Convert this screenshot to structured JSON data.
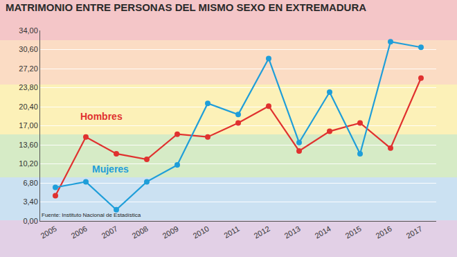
{
  "chart_data": {
    "type": "line",
    "title": "MATRIMONIO ENTRE PERSONAS DEL MISMO SEXO EN EXTREMADURA",
    "source": "Fuente: Instituto Nacional de Estadística",
    "categories": [
      "2005",
      "2006",
      "2007",
      "2008",
      "2009",
      "2010",
      "2011",
      "2012",
      "2013",
      "2014",
      "2015",
      "2016",
      "2017"
    ],
    "series": [
      {
        "name": "Hombres",
        "color": "#e0312f",
        "marker": "circle",
        "values": [
          4.5,
          15,
          12,
          11,
          15.5,
          15,
          17.5,
          20.5,
          12.5,
          16,
          17.5,
          13,
          25.5
        ]
      },
      {
        "name": "Mujeres",
        "color": "#1f9ed9",
        "marker": "circle",
        "values": [
          6,
          7,
          2,
          7,
          10,
          21,
          19,
          29,
          14,
          23,
          12,
          32,
          31
        ]
      }
    ],
    "ylim": [
      0,
      34
    ],
    "yticks": [
      {
        "value": 0,
        "label": "0,00"
      },
      {
        "value": 3.4,
        "label": "3,40"
      },
      {
        "value": 6.8,
        "label": "6,80"
      },
      {
        "value": 10.2,
        "label": "10,20"
      },
      {
        "value": 13.6,
        "label": "13,60"
      },
      {
        "value": 17,
        "label": "17,00"
      },
      {
        "value": 20.4,
        "label": "20,40"
      },
      {
        "value": 23.8,
        "label": "23,80"
      },
      {
        "value": 27.2,
        "label": "27,20"
      },
      {
        "value": 30.6,
        "label": "30,60"
      },
      {
        "value": 34,
        "label": "34,00"
      }
    ],
    "grid": true
  }
}
